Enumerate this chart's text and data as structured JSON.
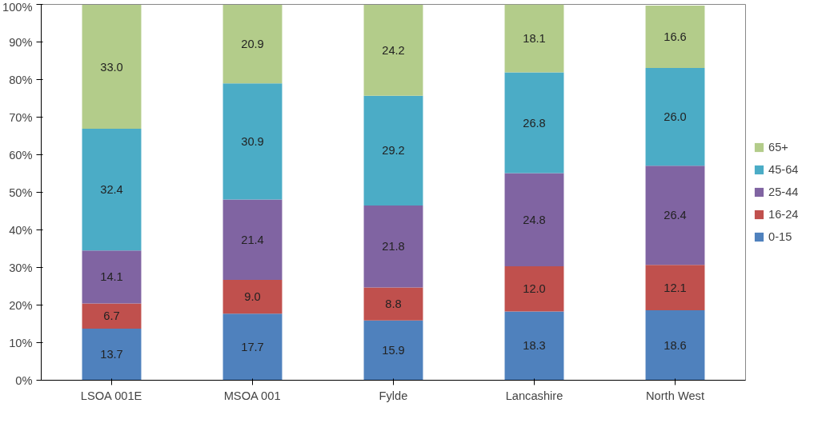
{
  "chart_data": {
    "type": "bar",
    "stacked": true,
    "categories": [
      "LSOA 001E",
      "MSOA 001",
      "Fylde",
      "Lancashire",
      "North West"
    ],
    "series": [
      {
        "name": "0-15",
        "color": "#4f81bd",
        "values": [
          13.7,
          17.7,
          15.9,
          18.3,
          18.6
        ],
        "value_labels": [
          "13.7",
          "17.7",
          "15.9",
          "18.3",
          "18.6"
        ]
      },
      {
        "name": "16-24",
        "color": "#c0504d",
        "values": [
          6.7,
          9.0,
          8.8,
          12.0,
          12.1
        ],
        "value_labels": [
          "6.7",
          "9.0",
          "8.8",
          "12.0",
          "12.1"
        ]
      },
      {
        "name": "25-44",
        "color": "#8064a2",
        "values": [
          14.1,
          21.4,
          21.8,
          24.8,
          26.4
        ],
        "value_labels": [
          "14.1",
          "21.4",
          "21.8",
          "24.8",
          "26.4"
        ]
      },
      {
        "name": "45-64",
        "color": "#4bacc6",
        "values": [
          32.4,
          30.9,
          29.2,
          26.8,
          26.0
        ],
        "value_labels": [
          "32.4",
          "30.9",
          "29.2",
          "26.8",
          "26.0"
        ]
      },
      {
        "name": "65+",
        "color": "#b3cc8a",
        "values": [
          33.0,
          20.9,
          24.2,
          18.1,
          16.6
        ],
        "value_labels": [
          "33.0",
          "20.9",
          "24.2",
          "18.1",
          "16.6"
        ]
      }
    ],
    "ylim": [
      0,
      100
    ],
    "yticks": [
      {
        "value": 0,
        "label": "0%"
      },
      {
        "value": 10,
        "label": "10%"
      },
      {
        "value": 20,
        "label": "20%"
      },
      {
        "value": 30,
        "label": "30%"
      },
      {
        "value": 40,
        "label": "40%"
      },
      {
        "value": 50,
        "label": "50%"
      },
      {
        "value": 60,
        "label": "60%"
      },
      {
        "value": 70,
        "label": "70%"
      },
      {
        "value": 80,
        "label": "80%"
      },
      {
        "value": 90,
        "label": "90%"
      },
      {
        "value": 100,
        "label": "100%"
      }
    ],
    "legend": "right",
    "grid": false
  }
}
